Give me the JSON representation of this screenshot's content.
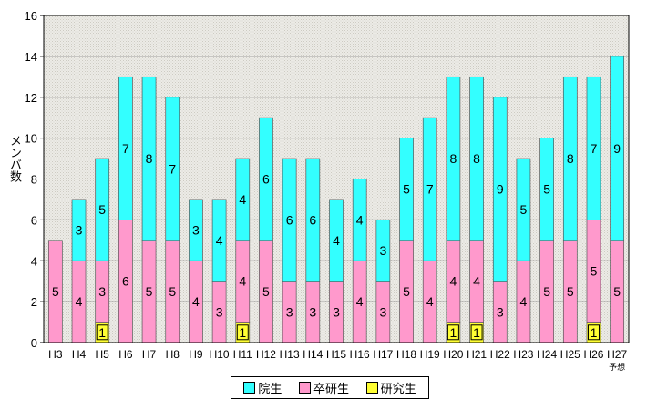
{
  "chart_data": {
    "type": "bar",
    "stacked": true,
    "title": "",
    "xlabel": "",
    "ylabel": "メンバ数",
    "ylim": [
      0,
      16
    ],
    "yticks": [
      0,
      2,
      4,
      6,
      8,
      10,
      12,
      14,
      16
    ],
    "grid": true,
    "legend_position": "bottom",
    "categories": [
      "H3",
      "H4",
      "H5",
      "H6",
      "H7",
      "H8",
      "H9",
      "H10",
      "H11",
      "H12",
      "H13",
      "H14",
      "H15",
      "H16",
      "H17",
      "H18",
      "H19",
      "H20",
      "H21",
      "H22",
      "H23",
      "H24",
      "H25",
      "H26",
      "H27"
    ],
    "category_sublabels": {
      "H27": "予想"
    },
    "series": [
      {
        "name": "研究生",
        "color": "#ffff33",
        "values": [
          0,
          0,
          1,
          0,
          0,
          0,
          0,
          0,
          1,
          0,
          0,
          0,
          0,
          0,
          0,
          0,
          0,
          1,
          1,
          0,
          0,
          0,
          0,
          1,
          0
        ]
      },
      {
        "name": "卒研生",
        "color": "#ff99cc",
        "values": [
          5,
          4,
          3,
          6,
          5,
          5,
          4,
          3,
          4,
          5,
          3,
          3,
          3,
          4,
          3,
          5,
          4,
          4,
          4,
          3,
          4,
          5,
          5,
          5,
          5
        ]
      },
      {
        "name": "院生",
        "color": "#33ffff",
        "values": [
          0,
          3,
          5,
          7,
          8,
          7,
          3,
          4,
          4,
          6,
          6,
          6,
          4,
          4,
          3,
          5,
          7,
          8,
          8,
          9,
          5,
          5,
          8,
          7,
          9
        ]
      }
    ]
  }
}
